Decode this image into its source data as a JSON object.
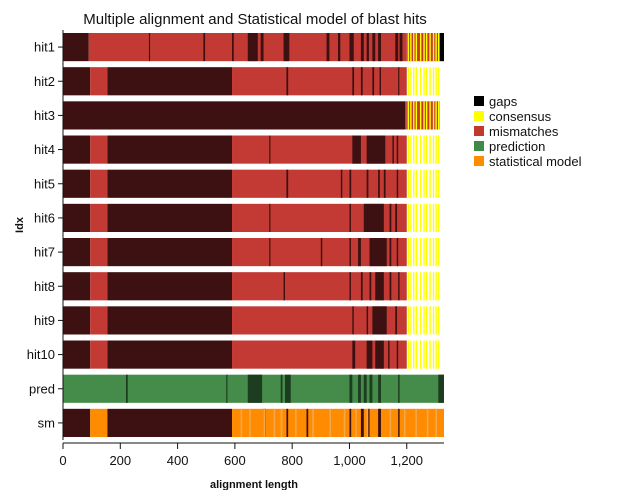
{
  "chart_data": {
    "type": "heatmap",
    "title": "Multiple alignment and Statistical model of blast hits",
    "xlabel": "alignment length",
    "ylabel": "Idx",
    "xlim": [
      0,
      1330
    ],
    "xticks": [
      0,
      200,
      400,
      600,
      800,
      1000,
      1200
    ],
    "xtick_labels": [
      "0",
      "200",
      "400",
      "600",
      "800",
      "1,000",
      "1,200"
    ],
    "rows": [
      "hit1",
      "hit2",
      "hit3",
      "hit4",
      "hit5",
      "hit6",
      "hit7",
      "hit8",
      "hit9",
      "hit10",
      "pred",
      "sm"
    ],
    "legend_position": "right",
    "legend": [
      {
        "label": "gaps",
        "color": "#000000"
      },
      {
        "label": "consensus",
        "color": "#ffff00"
      },
      {
        "label": "mismatches",
        "color": "#c0392b"
      },
      {
        "label": "prediction",
        "color": "#3f8a47"
      },
      {
        "label": "statistical model",
        "color": "#ff8c00"
      }
    ],
    "colors": {
      "background_base": "#3d1111",
      "mismatch": "#c23a33",
      "gap": "#000000",
      "consensus": "#ffff00",
      "prediction": "#458b4a",
      "prediction_dark": "#1c3d1f",
      "statistical_model": "#ff8c00",
      "sm_light": "#f3a64a"
    },
    "segments": {
      "hit1": [
        [
          0,
          90,
          "base"
        ],
        [
          90,
          1200,
          "mismatch"
        ],
        [
          300,
          304,
          "base"
        ],
        [
          490,
          496,
          "base"
        ],
        [
          590,
          596,
          "base"
        ],
        [
          645,
          680,
          "base"
        ],
        [
          690,
          700,
          "base"
        ],
        [
          770,
          790,
          "base"
        ],
        [
          920,
          930,
          "base"
        ],
        [
          960,
          968,
          "base"
        ],
        [
          1000,
          1015,
          "base"
        ],
        [
          1040,
          1050,
          "base"
        ],
        [
          1060,
          1068,
          "base"
        ],
        [
          1080,
          1090,
          "base"
        ],
        [
          1100,
          1110,
          "base"
        ],
        [
          1160,
          1170,
          "base"
        ],
        [
          1175,
          1185,
          "base"
        ],
        [
          1200,
          1315,
          "mismatch"
        ],
        [
          1315,
          1330,
          "gap"
        ]
      ],
      "hit2": [
        [
          0,
          95,
          "base"
        ],
        [
          95,
          155,
          "mismatch"
        ],
        [
          155,
          590,
          "base"
        ],
        [
          590,
          1200,
          "mismatch"
        ],
        [
          780,
          786,
          "base"
        ],
        [
          1010,
          1016,
          "base"
        ],
        [
          1040,
          1046,
          "base"
        ],
        [
          1080,
          1086,
          "base"
        ],
        [
          1105,
          1110,
          "base"
        ],
        [
          1170,
          1174,
          "base"
        ]
      ],
      "hit3": [
        [
          0,
          1195,
          "base"
        ],
        [
          1195,
          1200,
          "mismatch"
        ]
      ],
      "hit4": [
        [
          0,
          95,
          "base"
        ],
        [
          95,
          155,
          "mismatch"
        ],
        [
          155,
          590,
          "base"
        ],
        [
          590,
          1200,
          "mismatch"
        ],
        [
          720,
          724,
          "base"
        ],
        [
          1010,
          1040,
          "base"
        ],
        [
          1060,
          1125,
          "base"
        ],
        [
          1150,
          1155,
          "base"
        ],
        [
          1165,
          1170,
          "base"
        ]
      ],
      "hit5": [
        [
          0,
          95,
          "base"
        ],
        [
          95,
          155,
          "mismatch"
        ],
        [
          155,
          590,
          "base"
        ],
        [
          590,
          1200,
          "mismatch"
        ],
        [
          780,
          786,
          "base"
        ],
        [
          970,
          975,
          "base"
        ],
        [
          1000,
          1006,
          "base"
        ],
        [
          1060,
          1066,
          "base"
        ],
        [
          1100,
          1106,
          "base"
        ],
        [
          1120,
          1126,
          "base"
        ],
        [
          1165,
          1170,
          "base"
        ]
      ],
      "hit6": [
        [
          0,
          95,
          "base"
        ],
        [
          95,
          155,
          "mismatch"
        ],
        [
          155,
          590,
          "base"
        ],
        [
          590,
          1200,
          "mismatch"
        ],
        [
          720,
          724,
          "base"
        ],
        [
          1000,
          1005,
          "base"
        ],
        [
          1050,
          1120,
          "base"
        ],
        [
          1140,
          1146,
          "base"
        ],
        [
          1160,
          1166,
          "base"
        ]
      ],
      "hit7": [
        [
          0,
          95,
          "base"
        ],
        [
          95,
          155,
          "mismatch"
        ],
        [
          155,
          590,
          "base"
        ],
        [
          590,
          1200,
          "mismatch"
        ],
        [
          720,
          724,
          "base"
        ],
        [
          900,
          905,
          "base"
        ],
        [
          1000,
          1005,
          "base"
        ],
        [
          1030,
          1040,
          "base"
        ],
        [
          1070,
          1130,
          "base"
        ],
        [
          1140,
          1146,
          "base"
        ],
        [
          1165,
          1170,
          "base"
        ]
      ],
      "hit8": [
        [
          0,
          95,
          "base"
        ],
        [
          95,
          155,
          "mismatch"
        ],
        [
          155,
          590,
          "base"
        ],
        [
          590,
          1200,
          "mismatch"
        ],
        [
          770,
          775,
          "base"
        ],
        [
          1000,
          1005,
          "base"
        ],
        [
          1040,
          1046,
          "base"
        ],
        [
          1070,
          1076,
          "base"
        ],
        [
          1090,
          1120,
          "base"
        ],
        [
          1140,
          1146,
          "base"
        ],
        [
          1170,
          1175,
          "base"
        ]
      ],
      "hit9": [
        [
          0,
          95,
          "base"
        ],
        [
          95,
          155,
          "mismatch"
        ],
        [
          155,
          590,
          "base"
        ],
        [
          590,
          1200,
          "mismatch"
        ],
        [
          1010,
          1015,
          "base"
        ],
        [
          1060,
          1065,
          "base"
        ],
        [
          1080,
          1130,
          "base"
        ],
        [
          1160,
          1166,
          "base"
        ]
      ],
      "hit10": [
        [
          0,
          95,
          "base"
        ],
        [
          95,
          155,
          "mismatch"
        ],
        [
          155,
          590,
          "base"
        ],
        [
          590,
          1200,
          "mismatch"
        ],
        [
          1010,
          1020,
          "base"
        ],
        [
          1060,
          1080,
          "base"
        ],
        [
          1090,
          1120,
          "base"
        ],
        [
          1135,
          1140,
          "base"
        ],
        [
          1165,
          1170,
          "base"
        ]
      ],
      "pred": [
        [
          0,
          1330,
          "prediction"
        ],
        [
          220,
          226,
          "prediction_dark"
        ],
        [
          570,
          574,
          "prediction_dark"
        ],
        [
          645,
          695,
          "prediction_dark"
        ],
        [
          760,
          766,
          "prediction_dark"
        ],
        [
          775,
          795,
          "prediction_dark"
        ],
        [
          1000,
          1010,
          "prediction_dark"
        ],
        [
          1030,
          1040,
          "prediction_dark"
        ],
        [
          1050,
          1060,
          "prediction_dark"
        ],
        [
          1070,
          1080,
          "prediction_dark"
        ],
        [
          1100,
          1110,
          "prediction_dark"
        ],
        [
          1170,
          1175,
          "prediction_dark"
        ],
        [
          1310,
          1330,
          "prediction_dark"
        ]
      ],
      "sm": [
        [
          0,
          95,
          "base"
        ],
        [
          95,
          155,
          "statistical_model"
        ],
        [
          155,
          590,
          "base"
        ],
        [
          590,
          1330,
          "statistical_model"
        ],
        [
          700,
          706,
          "base"
        ],
        [
          780,
          786,
          "base"
        ],
        [
          850,
          856,
          "base"
        ],
        [
          1000,
          1006,
          "base"
        ],
        [
          1040,
          1050,
          "base"
        ],
        [
          1065,
          1070,
          "base"
        ],
        [
          1100,
          1110,
          "base"
        ],
        [
          1170,
          1175,
          "base"
        ]
      ]
    },
    "stripes": {
      "hit_range": [
        1200,
        1315
      ],
      "consensus_lines": [
        1203,
        1212,
        1222,
        1231,
        1246,
        1258,
        1267,
        1279,
        1291,
        1300,
        1309
      ],
      "sm_light_lines": [
        620,
        650,
        700,
        735,
        760,
        810,
        870,
        930,
        980,
        1020,
        1060,
        1140,
        1190,
        1230,
        1270,
        1300
      ]
    }
  }
}
